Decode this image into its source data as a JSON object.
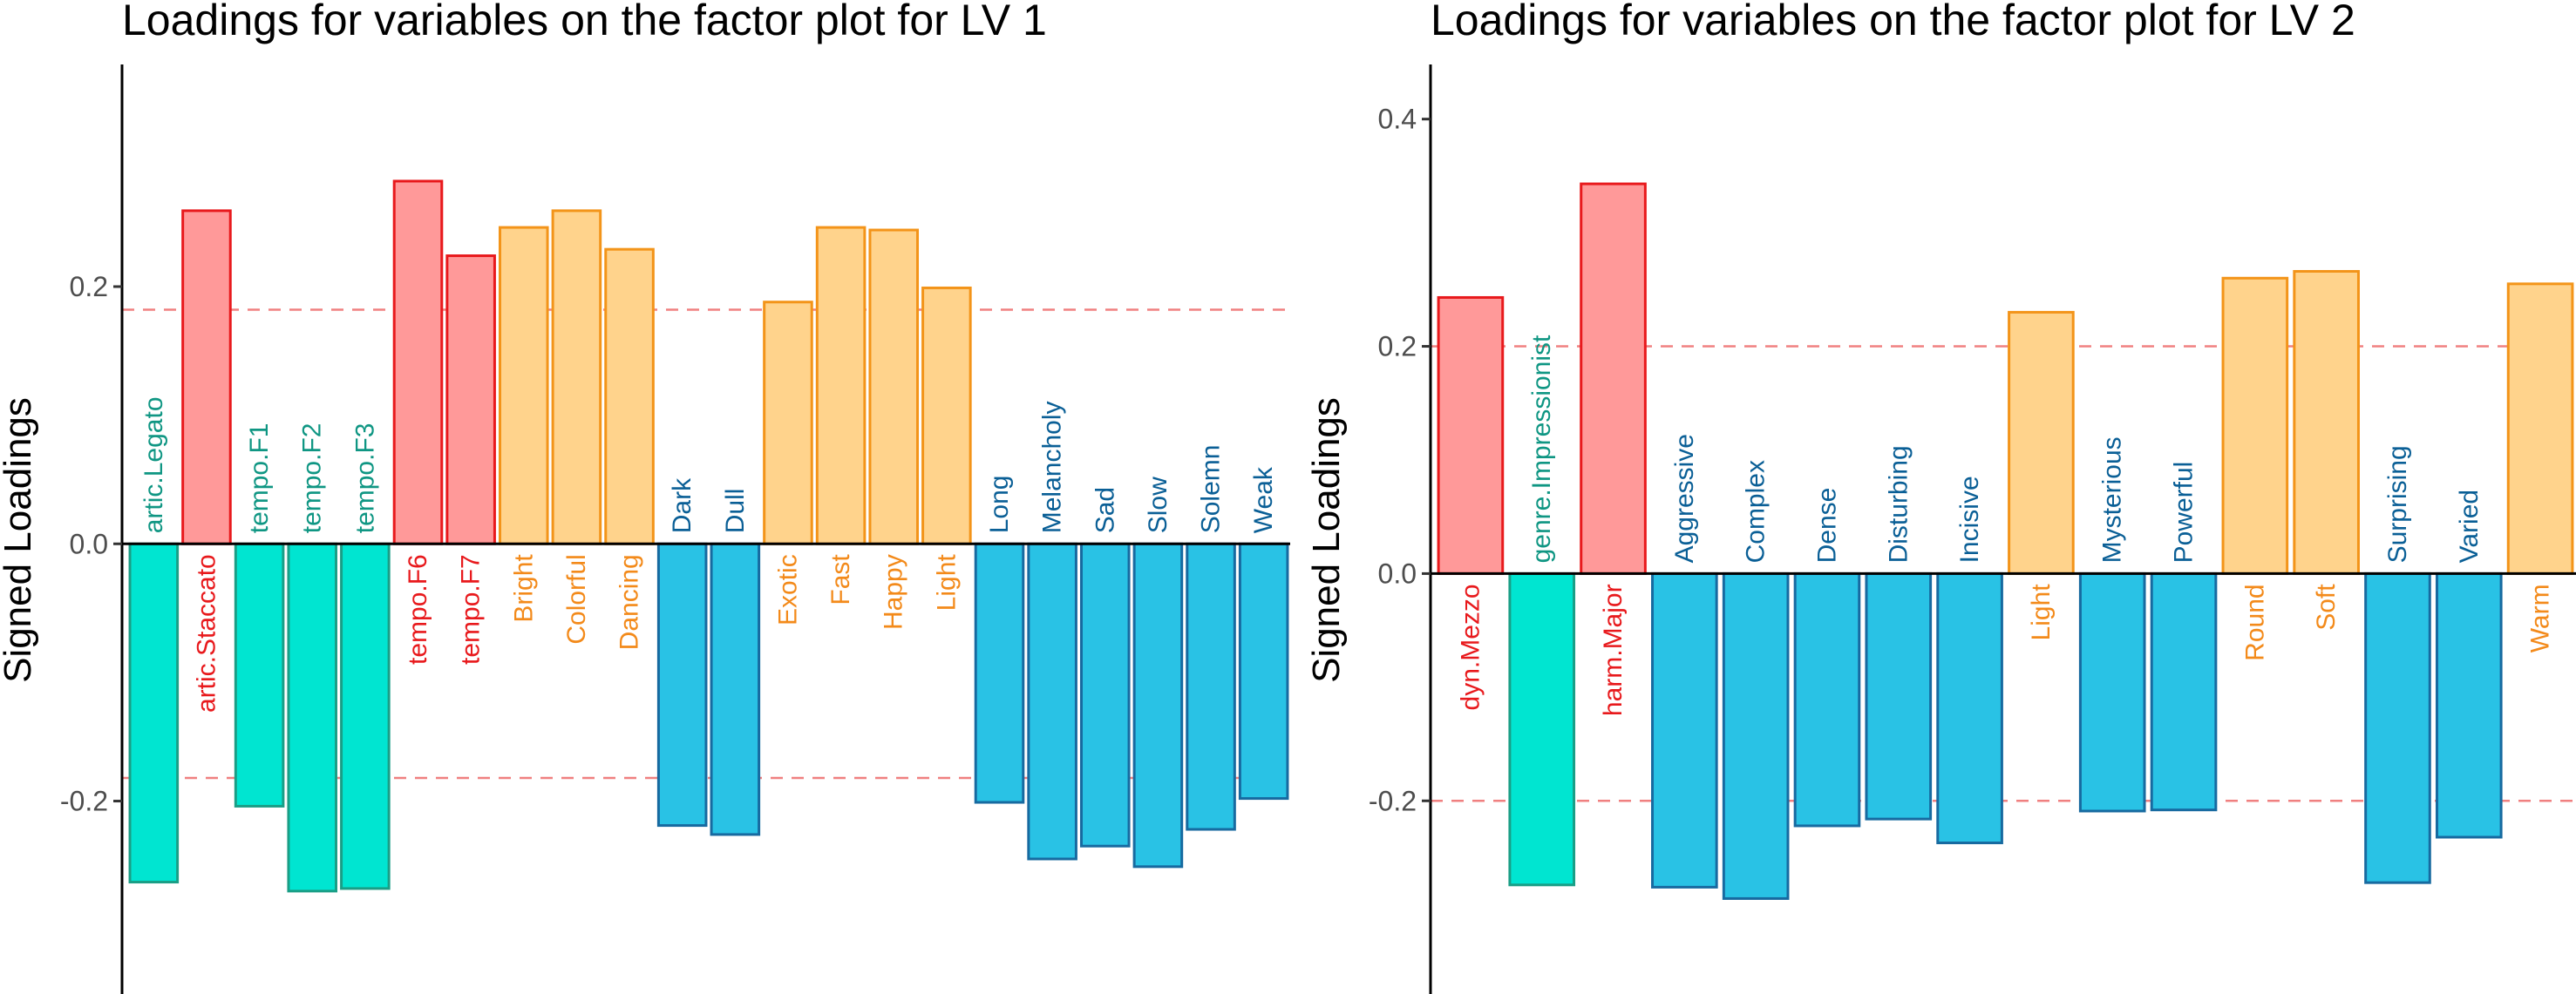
{
  "colors": {
    "bar_red_fill": "#ff9999",
    "bar_red_stroke": "#e8191c",
    "bar_orange_fill": "#ffd38c",
    "bar_orange_stroke": "#f39419",
    "bar_teal_fill": "#00e5d1",
    "bar_teal_stroke": "#1a9e86",
    "bar_blue_fill": "#29c2e5",
    "bar_blue_stroke": "#176aa0",
    "label_red": "#e8191c",
    "label_orange": "#f38a1a",
    "label_teal": "#0f9683",
    "label_blue": "#0a5f96",
    "threshold_line": "#f08080"
  },
  "chart_data": [
    {
      "type": "bar",
      "title": "Loadings for variables on the factor plot for LV 1",
      "ylabel": "Signed Loadings",
      "ylim": [
        -0.35,
        0.37
      ],
      "yticks": [
        -0.2,
        0.0,
        0.2
      ],
      "ytick_labels": [
        "-0.2",
        "0.0",
        "0.2"
      ],
      "threshold": 0.182,
      "grid": false,
      "categories": [
        "artic.Legato",
        "artic.Staccato",
        "tempo.F1",
        "tempo.F2",
        "tempo.F3",
        "tempo.F6",
        "tempo.F7",
        "Bright",
        "Colorful",
        "Dancing",
        "Dark",
        "Dull",
        "Exotic",
        "Fast",
        "Happy",
        "Light",
        "Long",
        "Melancholy",
        "Sad",
        "Slow",
        "Solemn",
        "Weak"
      ],
      "values": [
        -0.263,
        0.259,
        -0.204,
        -0.27,
        -0.268,
        0.282,
        0.224,
        0.246,
        0.259,
        0.229,
        -0.219,
        -0.226,
        0.188,
        0.246,
        0.244,
        0.199,
        -0.201,
        -0.245,
        -0.235,
        -0.251,
        -0.222,
        -0.198
      ],
      "groups": [
        "teal",
        "red",
        "teal",
        "teal",
        "teal",
        "red",
        "red",
        "orange",
        "orange",
        "orange",
        "blue",
        "blue",
        "orange",
        "orange",
        "orange",
        "orange",
        "blue",
        "blue",
        "blue",
        "blue",
        "blue",
        "blue"
      ]
    },
    {
      "type": "bar",
      "title": "Loadings for variables on the factor plot for LV 2",
      "ylabel": "Signed Loadings",
      "ylim": [
        -0.37,
        0.445
      ],
      "yticks": [
        -0.2,
        0.0,
        0.2,
        0.4
      ],
      "ytick_labels": [
        "-0.2",
        "0.0",
        "0.2",
        "0.4"
      ],
      "threshold": 0.2,
      "grid": false,
      "categories": [
        "dyn.Mezzo",
        "genre.Impressionist",
        "harm.Major",
        "Aggressive",
        "Complex",
        "Dense",
        "Disturbing",
        "Incisive",
        "Light",
        "Mysterious",
        "Powerful",
        "Round",
        "Soft",
        "Surprising",
        "Varied",
        "Warm"
      ],
      "values": [
        0.243,
        -0.274,
        0.343,
        -0.276,
        -0.286,
        -0.222,
        -0.216,
        -0.237,
        0.23,
        -0.209,
        -0.208,
        0.26,
        0.266,
        -0.272,
        -0.232,
        0.255
      ],
      "groups": [
        "red",
        "teal",
        "red",
        "blue",
        "blue",
        "blue",
        "blue",
        "blue",
        "orange",
        "blue",
        "blue",
        "orange",
        "orange",
        "blue",
        "blue",
        "orange"
      ]
    }
  ]
}
